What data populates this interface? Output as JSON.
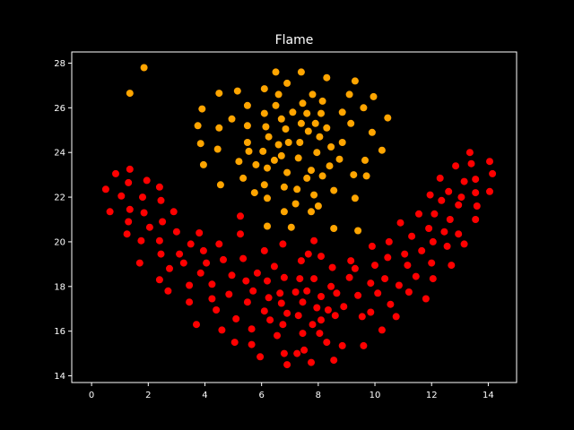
{
  "chart_data": {
    "type": "scatter",
    "title": "Flame",
    "xlabel": "",
    "ylabel": "",
    "xlim": [
      -0.7,
      15.0
    ],
    "ylim": [
      13.7,
      28.5
    ],
    "xticks": [
      0,
      2,
      4,
      6,
      8,
      10,
      12,
      14
    ],
    "yticks": [
      14,
      16,
      18,
      20,
      22,
      24,
      26,
      28
    ],
    "background": "#000000",
    "axis_color": "#ffffff",
    "grid": false,
    "legend": false,
    "series": [
      {
        "color": "#ffa500",
        "points": [
          [
            1.85,
            27.8
          ],
          [
            1.35,
            26.65
          ],
          [
            6.5,
            27.6
          ],
          [
            7.4,
            27.6
          ],
          [
            8.3,
            27.35
          ],
          [
            9.3,
            27.2
          ],
          [
            6.9,
            27.1
          ],
          [
            6.1,
            26.85
          ],
          [
            5.15,
            26.75
          ],
          [
            6.6,
            26.6
          ],
          [
            4.5,
            26.65
          ],
          [
            7.8,
            26.6
          ],
          [
            9.1,
            26.6
          ],
          [
            9.95,
            26.5
          ],
          [
            7.45,
            26.2
          ],
          [
            8.15,
            26.3
          ],
          [
            6.5,
            26.1
          ],
          [
            5.5,
            26.1
          ],
          [
            9.6,
            26.0
          ],
          [
            3.9,
            25.95
          ],
          [
            7.1,
            25.8
          ],
          [
            6.1,
            25.75
          ],
          [
            7.6,
            25.75
          ],
          [
            8.1,
            25.75
          ],
          [
            8.85,
            25.8
          ],
          [
            10.45,
            25.55
          ],
          [
            4.95,
            25.5
          ],
          [
            6.7,
            25.5
          ],
          [
            7.4,
            25.3
          ],
          [
            8.3,
            25.1
          ],
          [
            9.15,
            25.3
          ],
          [
            7.9,
            25.3
          ],
          [
            5.5,
            25.2
          ],
          [
            3.75,
            25.2
          ],
          [
            6.15,
            25.15
          ],
          [
            4.5,
            25.1
          ],
          [
            6.85,
            25.05
          ],
          [
            7.65,
            24.95
          ],
          [
            9.9,
            24.9
          ],
          [
            6.25,
            24.7
          ],
          [
            8.05,
            24.7
          ],
          [
            6.95,
            24.45
          ],
          [
            3.85,
            24.4
          ],
          [
            5.5,
            24.45
          ],
          [
            7.35,
            24.45
          ],
          [
            8.85,
            24.45
          ],
          [
            6.6,
            24.35
          ],
          [
            8.45,
            24.25
          ],
          [
            10.25,
            24.1
          ],
          [
            4.45,
            24.15
          ],
          [
            5.55,
            24.05
          ],
          [
            6.05,
            24.05
          ],
          [
            7.95,
            24.0
          ],
          [
            6.7,
            23.85
          ],
          [
            7.3,
            23.75
          ],
          [
            8.75,
            23.7
          ],
          [
            9.65,
            23.65
          ],
          [
            5.2,
            23.6
          ],
          [
            3.95,
            23.45
          ],
          [
            6.45,
            23.65
          ],
          [
            5.8,
            23.45
          ],
          [
            8.4,
            23.4
          ],
          [
            6.2,
            23.3
          ],
          [
            7.75,
            23.2
          ],
          [
            6.9,
            23.1
          ],
          [
            9.25,
            23.0
          ],
          [
            5.35,
            22.85
          ],
          [
            7.6,
            22.85
          ],
          [
            8.15,
            22.95
          ],
          [
            9.7,
            22.95
          ],
          [
            6.1,
            22.55
          ],
          [
            4.55,
            22.55
          ],
          [
            6.8,
            22.45
          ],
          [
            5.75,
            22.2
          ],
          [
            7.25,
            22.35
          ],
          [
            8.55,
            22.3
          ],
          [
            7.85,
            22.1
          ],
          [
            6.2,
            21.95
          ],
          [
            9.3,
            21.95
          ],
          [
            7.2,
            21.7
          ],
          [
            8.0,
            21.6
          ],
          [
            6.8,
            21.35
          ],
          [
            7.75,
            21.35
          ],
          [
            6.2,
            20.7
          ],
          [
            7.05,
            20.65
          ],
          [
            8.55,
            20.6
          ],
          [
            9.4,
            20.5
          ]
        ]
      },
      {
        "color": "#ff0000",
        "points": [
          [
            0.5,
            22.35
          ],
          [
            0.65,
            21.35
          ],
          [
            0.85,
            23.05
          ],
          [
            1.05,
            22.05
          ],
          [
            1.35,
            23.25
          ],
          [
            1.3,
            22.65
          ],
          [
            1.35,
            21.45
          ],
          [
            1.3,
            20.9
          ],
          [
            1.25,
            20.35
          ],
          [
            1.8,
            22.0
          ],
          [
            1.95,
            22.75
          ],
          [
            1.85,
            21.3
          ],
          [
            2.05,
            20.65
          ],
          [
            1.75,
            20.05
          ],
          [
            1.7,
            19.05
          ],
          [
            2.4,
            22.45
          ],
          [
            2.45,
            21.85
          ],
          [
            2.5,
            20.9
          ],
          [
            2.4,
            20.05
          ],
          [
            2.45,
            19.45
          ],
          [
            2.4,
            18.3
          ],
          [
            2.7,
            17.8
          ],
          [
            2.9,
            21.35
          ],
          [
            2.75,
            18.8
          ],
          [
            3.0,
            20.45
          ],
          [
            3.1,
            19.45
          ],
          [
            3.25,
            19.05
          ],
          [
            3.45,
            18.05
          ],
          [
            3.45,
            17.3
          ],
          [
            3.5,
            19.9
          ],
          [
            3.7,
            16.3
          ],
          [
            3.8,
            20.4
          ],
          [
            3.85,
            18.6
          ],
          [
            3.95,
            19.6
          ],
          [
            4.05,
            19.05
          ],
          [
            4.25,
            18.1
          ],
          [
            4.25,
            17.45
          ],
          [
            4.4,
            16.95
          ],
          [
            4.5,
            19.9
          ],
          [
            4.6,
            16.05
          ],
          [
            4.65,
            19.2
          ],
          [
            4.85,
            17.65
          ],
          [
            4.95,
            18.5
          ],
          [
            5.05,
            15.5
          ],
          [
            5.1,
            16.55
          ],
          [
            5.25,
            21.15
          ],
          [
            5.25,
            20.35
          ],
          [
            5.35,
            19.25
          ],
          [
            5.45,
            18.25
          ],
          [
            5.5,
            17.3
          ],
          [
            5.65,
            16.1
          ],
          [
            5.65,
            15.4
          ],
          [
            5.7,
            17.8
          ],
          [
            5.85,
            18.6
          ],
          [
            5.95,
            14.85
          ],
          [
            6.1,
            16.9
          ],
          [
            6.1,
            19.6
          ],
          [
            6.2,
            18.25
          ],
          [
            6.25,
            17.5
          ],
          [
            6.3,
            16.5
          ],
          [
            6.45,
            18.9
          ],
          [
            6.55,
            15.8
          ],
          [
            6.65,
            17.7
          ],
          [
            6.7,
            17.25
          ],
          [
            6.75,
            16.3
          ],
          [
            6.75,
            19.9
          ],
          [
            6.8,
            18.4
          ],
          [
            6.8,
            15.0
          ],
          [
            6.9,
            14.5
          ],
          [
            6.9,
            16.8
          ],
          [
            7.2,
            17.75
          ],
          [
            7.25,
            15.0
          ],
          [
            7.3,
            16.7
          ],
          [
            7.35,
            18.35
          ],
          [
            7.4,
            19.15
          ],
          [
            7.45,
            17.3
          ],
          [
            7.45,
            15.9
          ],
          [
            7.5,
            15.15
          ],
          [
            7.6,
            17.8
          ],
          [
            7.65,
            19.45
          ],
          [
            7.75,
            14.6
          ],
          [
            7.8,
            16.3
          ],
          [
            7.85,
            18.35
          ],
          [
            7.85,
            20.05
          ],
          [
            7.95,
            17.05
          ],
          [
            8.05,
            15.9
          ],
          [
            8.1,
            19.35
          ],
          [
            8.1,
            17.55
          ],
          [
            8.1,
            16.5
          ],
          [
            8.3,
            15.5
          ],
          [
            8.35,
            16.95
          ],
          [
            8.45,
            18.0
          ],
          [
            8.5,
            18.85
          ],
          [
            8.6,
            16.7
          ],
          [
            8.65,
            17.7
          ],
          [
            8.55,
            14.7
          ],
          [
            8.85,
            15.35
          ],
          [
            8.9,
            17.1
          ],
          [
            9.1,
            18.4
          ],
          [
            9.15,
            19.15
          ],
          [
            9.3,
            18.8
          ],
          [
            9.4,
            17.6
          ],
          [
            9.55,
            16.65
          ],
          [
            9.6,
            15.35
          ],
          [
            9.85,
            16.85
          ],
          [
            9.85,
            18.15
          ],
          [
            9.9,
            19.8
          ],
          [
            10.0,
            18.95
          ],
          [
            10.1,
            17.7
          ],
          [
            10.25,
            16.05
          ],
          [
            10.35,
            18.35
          ],
          [
            10.45,
            19.3
          ],
          [
            10.5,
            20.0
          ],
          [
            10.55,
            17.2
          ],
          [
            10.75,
            16.65
          ],
          [
            10.85,
            18.05
          ],
          [
            10.9,
            20.85
          ],
          [
            11.05,
            19.45
          ],
          [
            11.15,
            18.95
          ],
          [
            11.2,
            17.75
          ],
          [
            11.3,
            20.25
          ],
          [
            11.45,
            18.45
          ],
          [
            11.55,
            21.25
          ],
          [
            11.65,
            19.6
          ],
          [
            11.8,
            17.45
          ],
          [
            11.9,
            20.6
          ],
          [
            11.95,
            22.1
          ],
          [
            12.0,
            19.05
          ],
          [
            12.05,
            18.35
          ],
          [
            12.05,
            20.0
          ],
          [
            12.1,
            21.25
          ],
          [
            12.3,
            22.85
          ],
          [
            12.35,
            21.85
          ],
          [
            12.45,
            20.45
          ],
          [
            12.55,
            19.8
          ],
          [
            12.6,
            22.25
          ],
          [
            12.65,
            21.0
          ],
          [
            12.7,
            18.95
          ],
          [
            12.85,
            23.4
          ],
          [
            12.95,
            20.35
          ],
          [
            12.95,
            21.65
          ],
          [
            13.05,
            22.0
          ],
          [
            13.15,
            22.7
          ],
          [
            13.15,
            19.9
          ],
          [
            13.35,
            24.0
          ],
          [
            13.4,
            23.5
          ],
          [
            13.55,
            22.8
          ],
          [
            13.55,
            22.2
          ],
          [
            13.6,
            21.6
          ],
          [
            13.55,
            21.0
          ],
          [
            14.05,
            23.6
          ],
          [
            14.05,
            22.25
          ],
          [
            14.15,
            23.05
          ]
        ]
      }
    ]
  }
}
